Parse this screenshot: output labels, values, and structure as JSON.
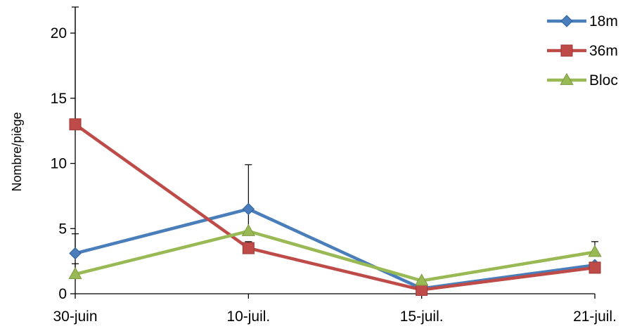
{
  "chart_data": {
    "type": "line",
    "title": "",
    "xlabel": "",
    "ylabel": "Nombre/piège",
    "categories": [
      "30-juin",
      "10-juil.",
      "15-juil.",
      "21-juil."
    ],
    "ylim": [
      0,
      22
    ],
    "yticks": [
      0,
      5,
      10,
      15,
      20
    ],
    "grid": false,
    "legend_position": "top-right",
    "series": [
      {
        "name": "18m",
        "color": "#4a7ebb",
        "marker": "diamond",
        "values": [
          3.1,
          6.5,
          0.4,
          2.2
        ],
        "error_up": [
          1.5,
          0,
          0,
          0
        ]
      },
      {
        "name": "36m",
        "color": "#be4b48",
        "marker": "square",
        "values": [
          13.0,
          3.5,
          0.3,
          2.0
        ],
        "error_up": [
          9.0,
          0.5,
          0,
          0
        ]
      },
      {
        "name": "Bloc",
        "color": "#98b954",
        "marker": "triangle",
        "values": [
          1.5,
          4.8,
          1.0,
          3.2
        ],
        "error_up": [
          0.8,
          5.1,
          0,
          0.8
        ]
      }
    ]
  }
}
